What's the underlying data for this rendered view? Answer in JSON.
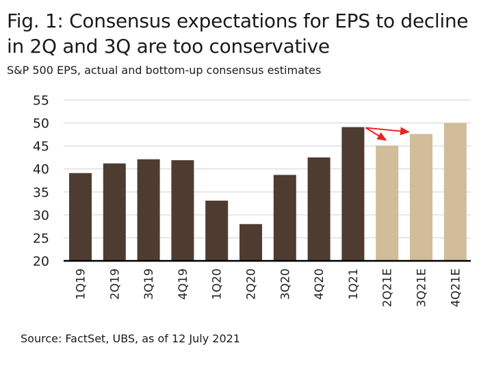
{
  "chart_data": {
    "type": "bar",
    "title": "Fig. 1: Consensus expectations for EPS to decline in 2Q and 3Q are too conservative",
    "subtitle": "S&P 500 EPS, actual and bottom-up consensus estimates",
    "source": "Source: FactSet, UBS, as of 12 July 2021",
    "categories": [
      "1Q19",
      "2Q19",
      "3Q19",
      "4Q19",
      "1Q20",
      "2Q20",
      "3Q20",
      "4Q20",
      "1Q21",
      "2Q21E",
      "3Q21E",
      "4Q21E"
    ],
    "values": [
      39.1,
      41.2,
      42.1,
      41.9,
      33.1,
      28.0,
      38.7,
      42.5,
      49.1,
      45.1,
      47.6,
      50.0
    ],
    "bar_types": [
      "actual",
      "actual",
      "actual",
      "actual",
      "actual",
      "actual",
      "actual",
      "actual",
      "actual",
      "estimate",
      "estimate",
      "estimate"
    ],
    "colors": {
      "actual": "#4e3c31",
      "estimate": "#d1bd9a",
      "arrow": "#e8231f",
      "grid": "#d0d0d0"
    },
    "ylim": [
      20,
      55
    ],
    "yticks": [
      20,
      25,
      30,
      35,
      40,
      45,
      50,
      55
    ],
    "grid": true,
    "annotations": [
      {
        "type": "arrow",
        "from": "1Q21",
        "to": "2Q21E"
      },
      {
        "type": "arrow",
        "from": "1Q21",
        "to": "3Q21E"
      }
    ]
  }
}
